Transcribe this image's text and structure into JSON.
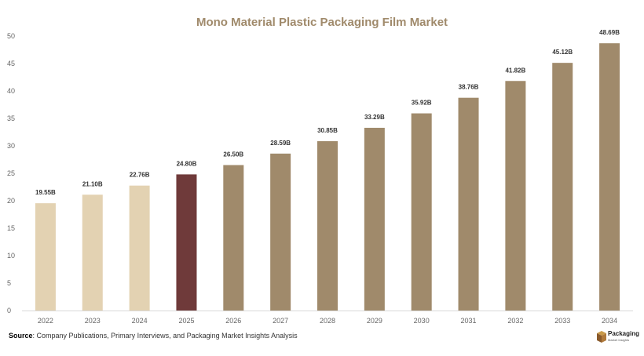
{
  "chart_data": {
    "type": "bar",
    "title": "Mono Material Plastic Packaging Film Market",
    "xlabel": "",
    "ylabel": "",
    "categories": [
      "2022",
      "2023",
      "2024",
      "2025",
      "2026",
      "2027",
      "2028",
      "2029",
      "2030",
      "2031",
      "2032",
      "2033",
      "2034"
    ],
    "values": [
      19.55,
      21.1,
      22.76,
      24.8,
      26.5,
      28.59,
      30.85,
      33.29,
      35.92,
      38.76,
      41.82,
      45.12,
      48.69
    ],
    "data_labels": [
      "19.55B",
      "21.10B",
      "22.76B",
      "24.80B",
      "26.50B",
      "28.59B",
      "30.85B",
      "33.29B",
      "35.92B",
      "38.76B",
      "41.82B",
      "45.12B",
      "48.69B"
    ],
    "ylim": [
      0,
      50
    ],
    "yticks": [
      0,
      5,
      10,
      15,
      20,
      25,
      30,
      35,
      40,
      45,
      50
    ],
    "grid": false,
    "legend": "none",
    "bar_colors": {
      "historical": "#e3d2b2",
      "current": "#6f3a3a",
      "forecast": "#a08a6b"
    },
    "bar_groups": [
      "historical",
      "historical",
      "historical",
      "current",
      "forecast",
      "forecast",
      "forecast",
      "forecast",
      "forecast",
      "forecast",
      "forecast",
      "forecast",
      "forecast"
    ],
    "title_color": "#a08a6b"
  },
  "footer": {
    "source_label": "Source",
    "source_text": ": Company Publications, Primary Interviews, and Packaging Market Insights Analysis"
  },
  "logo": {
    "name": "Packaging",
    "sub": "Market Insights",
    "icon": "box-icon"
  }
}
